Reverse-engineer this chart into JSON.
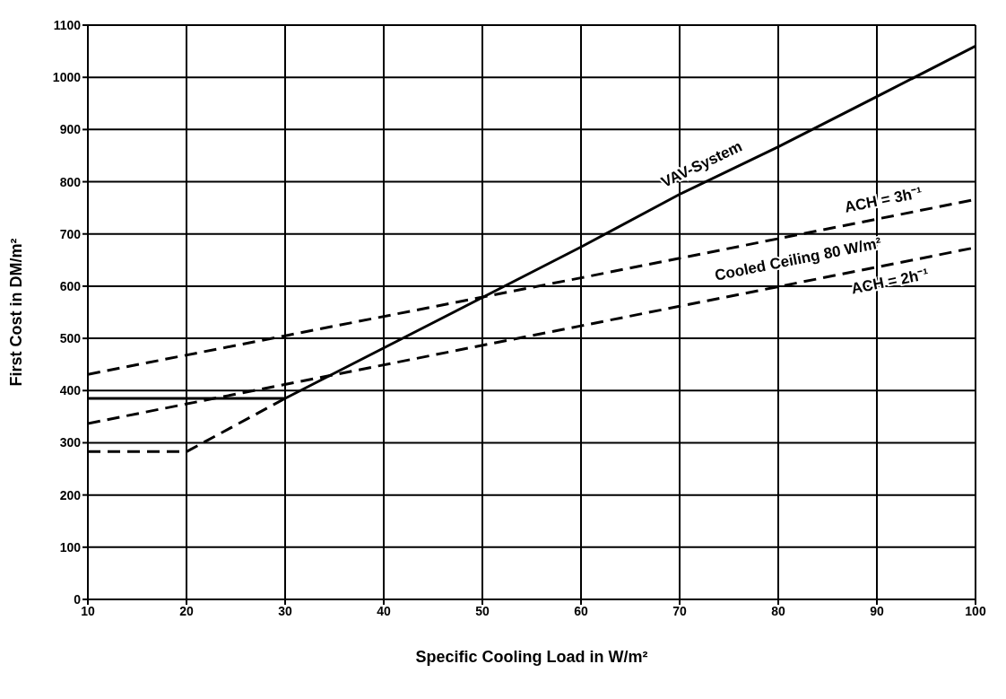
{
  "chart_data": {
    "type": "line",
    "xlabel": "Specific Cooling Load in W/m²",
    "ylabel": "First Cost in DM/m²",
    "xlim": [
      10,
      100
    ],
    "xticks": [
      10,
      20,
      30,
      40,
      50,
      60,
      70,
      80,
      90,
      100
    ],
    "ylim": [
      0,
      1100
    ],
    "yticks": [
      0,
      100,
      200,
      300,
      400,
      500,
      600,
      700,
      800,
      900,
      1000,
      1100
    ],
    "grid": true,
    "marker": "none",
    "series": [
      {
        "name": "VAV-System",
        "color": "#000000",
        "line_style": "solid",
        "x": [
          10,
          30,
          60,
          70,
          80,
          90,
          100
        ],
        "values": [
          385,
          385,
          675,
          776,
          867,
          963,
          1060
        ]
      },
      {
        "name": "ACH = 3h⁻¹",
        "color": "#000000",
        "line_style": "dashed",
        "x": [
          10,
          30,
          60,
          100
        ],
        "values": [
          431,
          505,
          616,
          766
        ]
      },
      {
        "name": "ACH = 2h⁻¹",
        "color": "#000000",
        "line_style": "dashed",
        "x": [
          10,
          60,
          100
        ],
        "values": [
          337,
          524,
          674
        ]
      },
      {
        "color": "#000000",
        "line_style": "dashed",
        "x": [
          10,
          20,
          30
        ],
        "values": [
          283,
          283,
          385
        ]
      }
    ],
    "annotations": [
      "Cooled Ceiling 80 W/m²"
    ]
  }
}
